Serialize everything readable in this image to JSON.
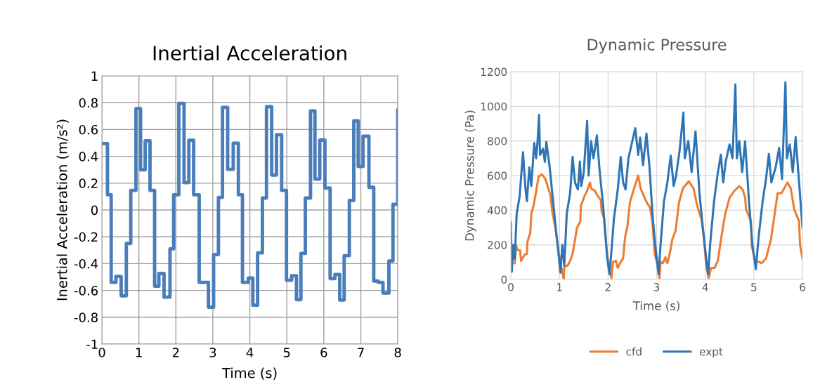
{
  "chart_data": [
    {
      "type": "step",
      "title": "Inertial Acceleration",
      "xlabel": "Time (s)",
      "ylabel": "Inertial Acceleration (m/s²)",
      "x": [
        0,
        0.15,
        0.25,
        0.38,
        0.52,
        0.66,
        0.78,
        0.92,
        1.045,
        1.17,
        1.3,
        1.425,
        1.54,
        1.68,
        1.84,
        1.94,
        2.08,
        2.22,
        2.35,
        2.48,
        2.63,
        2.88,
        3.02,
        3.15,
        3.26,
        3.4,
        3.55,
        3.69,
        3.8,
        3.96,
        4.08,
        4.21,
        4.34,
        4.45,
        4.59,
        4.72,
        4.86,
        4.99,
        5.13,
        5.26,
        5.38,
        5.5,
        5.64,
        5.76,
        5.89,
        6.03,
        6.17,
        6.3,
        6.43,
        6.55,
        6.69,
        6.81,
        6.93,
        7.06,
        7.22,
        7.35,
        7.47,
        7.6,
        7.76,
        7.87,
        8
      ],
      "values": [
        0.495,
        0.113,
        -0.54,
        -0.495,
        -0.64,
        -0.25,
        0.146,
        0.756,
        0.3,
        0.516,
        0.146,
        -0.568,
        -0.474,
        -0.65,
        -0.29,
        0.113,
        0.795,
        0.204,
        0.52,
        0.113,
        -0.54,
        -0.725,
        -0.333,
        0.094,
        0.765,
        0.303,
        0.498,
        0.113,
        -0.54,
        -0.507,
        -0.71,
        -0.32,
        0.089,
        0.77,
        0.26,
        0.561,
        0.146,
        -0.524,
        -0.49,
        -0.669,
        -0.324,
        0.089,
        0.739,
        0.23,
        0.521,
        0.164,
        -0.512,
        -0.481,
        -0.672,
        -0.341,
        0.071,
        0.664,
        0.324,
        0.55,
        0.169,
        -0.53,
        -0.54,
        -0.62,
        -0.38,
        0.042,
        0.744
      ],
      "color": "#4a7ebb",
      "xlim": [
        0,
        8
      ],
      "xticks": [
        0,
        1,
        2,
        3,
        4,
        5,
        6,
        7,
        8
      ],
      "ylim": [
        -1,
        1
      ],
      "yticks": [
        -1,
        -0.8,
        -0.6,
        -0.4,
        -0.2,
        0,
        0.2,
        0.4,
        0.6,
        0.8,
        1
      ],
      "grid": true
    },
    {
      "type": "line",
      "title": "Dynamic Pressure",
      "xlabel": "Time (s)",
      "ylabel": "Dynamic Pressure (Pa)",
      "series": [
        {
          "name": "cfd",
          "color": "#ed7d31",
          "x": [
            0.08,
            0.11,
            0.135,
            0.19,
            0.21,
            0.28,
            0.33,
            0.34,
            0.4,
            0.42,
            0.47,
            0.51,
            0.57,
            0.64,
            0.71,
            0.81,
            0.86,
            0.91,
            0.98,
            1.03,
            1.09,
            1.1,
            1.17,
            1.22,
            1.27,
            1.32,
            1.36,
            1.43,
            1.44,
            1.51,
            1.56,
            1.63,
            1.65,
            1.73,
            1.78,
            1.85,
            1.87,
            1.92,
            1.97,
            2.02,
            2.07,
            2.1,
            2.16,
            2.2,
            2.26,
            2.31,
            2.35,
            2.4,
            2.45,
            2.52,
            2.62,
            2.67,
            2.74,
            2.81,
            2.86,
            2.91,
            2.96,
            3.01,
            3.06,
            3.08,
            3.13,
            3.18,
            3.22,
            3.27,
            3.32,
            3.39,
            3.46,
            3.54,
            3.66,
            3.76,
            3.83,
            3.93,
            3.97,
            4.02,
            4.07,
            4.12,
            4.19,
            4.26,
            4.33,
            4.41,
            4.5,
            4.6,
            4.7,
            4.77,
            4.82,
            4.84,
            4.94,
            4.96,
            5.03,
            5.11,
            5.16,
            5.25,
            5.35,
            5.42,
            5.49,
            5.57,
            5.69,
            5.76,
            5.83,
            5.93,
            5.95,
            6.0
          ],
          "values": [
            94,
            196,
            169,
            169,
            108,
            142,
            148,
            216,
            270,
            378,
            431,
            492,
            593,
            607,
            580,
            492,
            378,
            310,
            162,
            81,
            0,
            74,
            81,
            108,
            148,
            229,
            297,
            337,
            425,
            479,
            506,
            560,
            526,
            512,
            485,
            458,
            391,
            351,
            175,
            67,
            7,
            101,
            108,
            67,
            101,
            121,
            243,
            310,
            445,
            512,
            600,
            526,
            479,
            438,
            418,
            344,
            148,
            94,
            7,
            101,
            94,
            128,
            94,
            148,
            229,
            283,
            445,
            526,
            567,
            526,
            431,
            337,
            243,
            81,
            7,
            67,
            67,
            108,
            243,
            378,
            472,
            512,
            539,
            519,
            472,
            405,
            337,
            189,
            108,
            101,
            94,
            121,
            229,
            364,
            499,
            499,
            560,
            526,
            405,
            337,
            202,
            121
          ]
        },
        {
          "name": "expt",
          "color": "#2e75b6",
          "x": [
            0,
            0.02,
            0.05,
            0.08,
            0.12,
            0.18,
            0.25,
            0.3,
            0.33,
            0.38,
            0.42,
            0.48,
            0.52,
            0.55,
            0.58,
            0.6,
            0.66,
            0.7,
            0.73,
            0.8,
            0.88,
            0.95,
            1.02,
            1.06,
            1.1,
            1.15,
            1.22,
            1.27,
            1.32,
            1.38,
            1.42,
            1.45,
            1.5,
            1.57,
            1.6,
            1.65,
            1.7,
            1.77,
            1.82,
            1.9,
            1.98,
            2.03,
            2.08,
            2.12,
            2.2,
            2.26,
            2.31,
            2.36,
            2.42,
            2.5,
            2.56,
            2.62,
            2.66,
            2.72,
            2.79,
            2.85,
            2.92,
            2.99,
            3.04,
            3.08,
            3.15,
            3.22,
            3.29,
            3.35,
            3.4,
            3.47,
            3.55,
            3.58,
            3.65,
            3.72,
            3.8,
            3.88,
            3.95,
            4.02,
            4.06,
            4.1,
            4.18,
            4.25,
            4.32,
            4.37,
            4.42,
            4.5,
            4.56,
            4.62,
            4.65,
            4.7,
            4.76,
            4.82,
            4.9,
            4.97,
            5.04,
            5.1,
            5.18,
            5.25,
            5.31,
            5.36,
            5.45,
            5.52,
            5.58,
            5.65,
            5.68,
            5.74,
            5.8,
            5.86,
            5.92,
            6.0
          ],
          "values": [
            330,
            45,
            200,
            120,
            380,
            480,
            735,
            526,
            452,
            647,
            540,
            789,
            700,
            800,
            950,
            720,
            755,
            680,
            795,
            647,
            418,
            230,
            40,
            200,
            80,
            380,
            500,
            708,
            560,
            520,
            681,
            540,
            620,
            917,
            600,
            800,
            700,
            832,
            650,
            420,
            130,
            30,
            200,
            350,
            520,
            708,
            560,
            520,
            700,
            800,
            874,
            720,
            820,
            660,
            843,
            660,
            350,
            150,
            30,
            200,
            450,
            560,
            715,
            540,
            600,
            740,
            964,
            700,
            800,
            620,
            856,
            500,
            300,
            120,
            30,
            200,
            450,
            600,
            721,
            560,
            680,
            780,
            700,
            1126,
            700,
            800,
            620,
            798,
            450,
            200,
            60,
            250,
            450,
            580,
            725,
            560,
            650,
            760,
            580,
            1139,
            700,
            780,
            620,
            822,
            600,
            300
          ]
        }
      ],
      "xlim": [
        0,
        6
      ],
      "xticks": [
        0,
        1,
        2,
        3,
        4,
        5,
        6
      ],
      "ylim": [
        0,
        1200
      ],
      "yticks": [
        0,
        200,
        400,
        600,
        800,
        1000,
        1200
      ],
      "grid": true,
      "legend": "bottom"
    }
  ]
}
